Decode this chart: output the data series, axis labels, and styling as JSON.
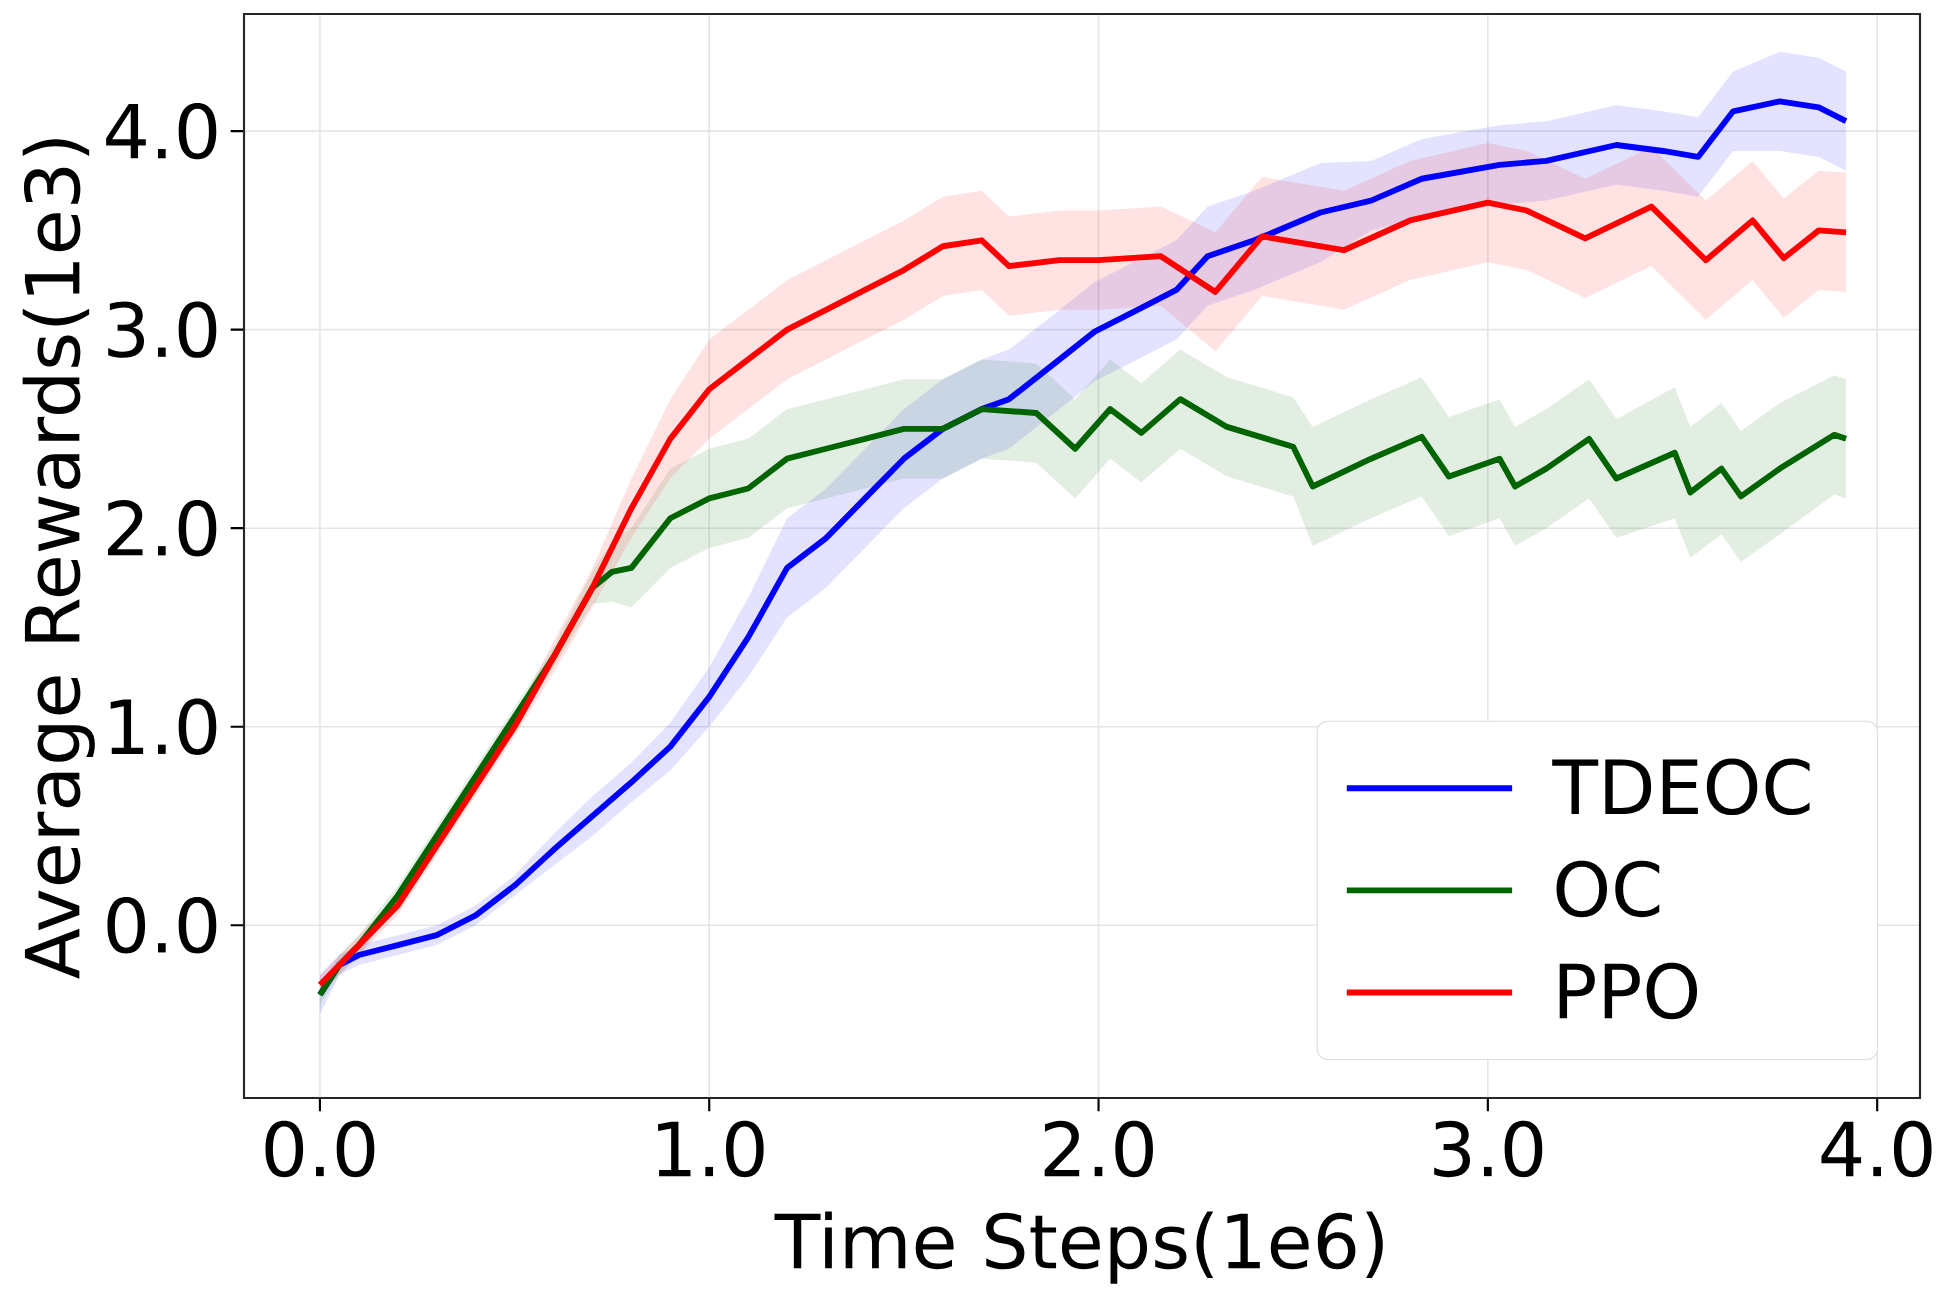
{
  "chart_data": {
    "type": "line",
    "xlabel": "Time Steps(1e6)",
    "ylabel": "Average Rewards(1e3)",
    "xlim": [
      -0.195,
      4.11
    ],
    "ylim": [
      -0.87,
      4.59
    ],
    "xticks": [
      {
        "value": 0,
        "label": "0.0"
      },
      {
        "value": 1,
        "label": "1.0"
      },
      {
        "value": 2,
        "label": "2.0"
      },
      {
        "value": 3,
        "label": "3.0"
      },
      {
        "value": 4,
        "label": "4.0"
      }
    ],
    "yticks": [
      {
        "value": 0,
        "label": "0.0"
      },
      {
        "value": 1,
        "label": "1.0"
      },
      {
        "value": 2,
        "label": "2.0"
      },
      {
        "value": 3,
        "label": "3.0"
      },
      {
        "value": 4,
        "label": "4.0"
      }
    ],
    "grid": true,
    "legend": "bottom right",
    "line_style": "solid",
    "series": [
      {
        "name": "TDEOC",
        "color": "#0000ff",
        "x": [
          0,
          0.05,
          0.1,
          0.2,
          0.3,
          0.4,
          0.5,
          0.6,
          0.7,
          0.8,
          0.9,
          1.0,
          1.1,
          1.2,
          1.3,
          1.4,
          1.5,
          1.6,
          1.7,
          1.77,
          1.9,
          1.99,
          2.1,
          2.2,
          2.28,
          2.4,
          2.57,
          2.7,
          2.83,
          3.03,
          3.15,
          3.33,
          3.45,
          3.54,
          3.63,
          3.75,
          3.85,
          3.92
        ],
        "values": [
          -0.35,
          -0.2,
          -0.15,
          -0.1,
          -0.05,
          0.05,
          0.2,
          0.38,
          0.55,
          0.72,
          0.9,
          1.15,
          1.45,
          1.8,
          1.95,
          2.15,
          2.35,
          2.5,
          2.6,
          2.65,
          2.85,
          2.99,
          3.1,
          3.2,
          3.37,
          3.45,
          3.59,
          3.65,
          3.76,
          3.83,
          3.85,
          3.93,
          3.9,
          3.87,
          4.1,
          4.15,
          4.12,
          4.05
        ],
        "lower": [
          -0.45,
          -0.25,
          -0.2,
          -0.15,
          -0.1,
          0,
          0.15,
          0.3,
          0.45,
          0.62,
          0.78,
          1,
          1.25,
          1.55,
          1.7,
          1.9,
          2.1,
          2.25,
          2.35,
          2.4,
          2.6,
          2.74,
          2.85,
          2.95,
          3.12,
          3.2,
          3.34,
          3.5,
          3.56,
          3.63,
          3.65,
          3.73,
          3.7,
          3.67,
          3.9,
          3.9,
          3.87,
          3.8
        ],
        "upper": [
          -0.25,
          -0.15,
          -0.1,
          -0.05,
          0,
          0.1,
          0.25,
          0.46,
          0.65,
          0.82,
          1.02,
          1.3,
          1.65,
          2.05,
          2.2,
          2.4,
          2.6,
          2.75,
          2.85,
          2.9,
          3.1,
          3.24,
          3.35,
          3.45,
          3.62,
          3.7,
          3.84,
          3.85,
          3.96,
          4.03,
          4.05,
          4.13,
          4.1,
          4.07,
          4.3,
          4.4,
          4.37,
          4.3
        ]
      },
      {
        "name": "OC",
        "color": "#006400",
        "x": [
          0,
          0.05,
          0.1,
          0.2,
          0.3,
          0.4,
          0.5,
          0.6,
          0.7,
          0.75,
          0.8,
          0.9,
          1.0,
          1.1,
          1.2,
          1.3,
          1.4,
          1.5,
          1.6,
          1.7,
          1.84,
          1.94,
          2.03,
          2.11,
          2.21,
          2.33,
          2.5,
          2.55,
          2.7,
          2.83,
          2.9,
          3.03,
          3.07,
          3.15,
          3.26,
          3.33,
          3.48,
          3.52,
          3.6,
          3.65,
          3.75,
          3.89,
          3.92
        ],
        "values": [
          -0.35,
          -0.2,
          -0.1,
          0.15,
          0.45,
          0.75,
          1.05,
          1.35,
          1.7,
          1.78,
          1.8,
          2.05,
          2.15,
          2.2,
          2.35,
          2.4,
          2.45,
          2.5,
          2.5,
          2.6,
          2.58,
          2.4,
          2.6,
          2.48,
          2.65,
          2.51,
          2.41,
          2.21,
          2.35,
          2.46,
          2.26,
          2.35,
          2.21,
          2.3,
          2.45,
          2.25,
          2.38,
          2.18,
          2.3,
          2.16,
          2.3,
          2.47,
          2.45
        ],
        "lower": [
          -0.4,
          -0.25,
          -0.15,
          0.1,
          0.4,
          0.7,
          1.0,
          1.3,
          1.62,
          1.63,
          1.6,
          1.8,
          1.9,
          1.95,
          2.1,
          2.15,
          2.2,
          2.25,
          2.25,
          2.35,
          2.33,
          2.15,
          2.35,
          2.23,
          2.4,
          2.26,
          2.16,
          1.91,
          2.05,
          2.16,
          1.96,
          2.05,
          1.91,
          2.0,
          2.15,
          1.95,
          2.05,
          1.85,
          1.97,
          1.83,
          1.97,
          2.17,
          2.15
        ],
        "upper": [
          -0.3,
          -0.15,
          -0.05,
          0.2,
          0.5,
          0.8,
          1.1,
          1.4,
          1.78,
          1.93,
          2.0,
          2.3,
          2.4,
          2.45,
          2.6,
          2.65,
          2.7,
          2.75,
          2.75,
          2.85,
          2.83,
          2.65,
          2.85,
          2.73,
          2.9,
          2.76,
          2.66,
          2.51,
          2.65,
          2.76,
          2.56,
          2.65,
          2.51,
          2.6,
          2.75,
          2.55,
          2.71,
          2.51,
          2.63,
          2.49,
          2.63,
          2.77,
          2.75
        ]
      },
      {
        "name": "PPO",
        "color": "#ff0000",
        "x": [
          0,
          0.05,
          0.1,
          0.2,
          0.3,
          0.4,
          0.5,
          0.6,
          0.7,
          0.8,
          0.9,
          1.0,
          1.1,
          1.2,
          1.3,
          1.4,
          1.5,
          1.6,
          1.7,
          1.77,
          1.9,
          2.0,
          2.16,
          2.3,
          2.42,
          2.63,
          2.8,
          3.0,
          3.1,
          3.25,
          3.42,
          3.56,
          3.68,
          3.76,
          3.85,
          3.92
        ],
        "values": [
          -0.3,
          -0.2,
          -0.1,
          0.1,
          0.4,
          0.7,
          1.0,
          1.35,
          1.7,
          2.1,
          2.45,
          2.7,
          2.85,
          3.0,
          3.1,
          3.2,
          3.3,
          3.42,
          3.45,
          3.32,
          3.35,
          3.35,
          3.37,
          3.19,
          3.47,
          3.4,
          3.55,
          3.64,
          3.6,
          3.46,
          3.62,
          3.35,
          3.55,
          3.36,
          3.5,
          3.49
        ],
        "lower": [
          -0.35,
          -0.25,
          -0.15,
          0.05,
          0.35,
          0.65,
          0.95,
          1.27,
          1.6,
          1.95,
          2.25,
          2.45,
          2.6,
          2.75,
          2.85,
          2.95,
          3.05,
          3.17,
          3.2,
          3.07,
          3.1,
          3.1,
          3.12,
          2.89,
          3.17,
          3.1,
          3.25,
          3.34,
          3.3,
          3.16,
          3.32,
          3.05,
          3.25,
          3.06,
          3.2,
          3.19
        ],
        "upper": [
          -0.25,
          -0.15,
          -0.05,
          0.15,
          0.45,
          0.75,
          1.05,
          1.43,
          1.8,
          2.25,
          2.65,
          2.95,
          3.1,
          3.25,
          3.35,
          3.45,
          3.55,
          3.67,
          3.7,
          3.57,
          3.6,
          3.6,
          3.62,
          3.49,
          3.77,
          3.7,
          3.85,
          3.94,
          3.9,
          3.76,
          3.92,
          3.65,
          3.85,
          3.66,
          3.8,
          3.79
        ]
      }
    ]
  }
}
